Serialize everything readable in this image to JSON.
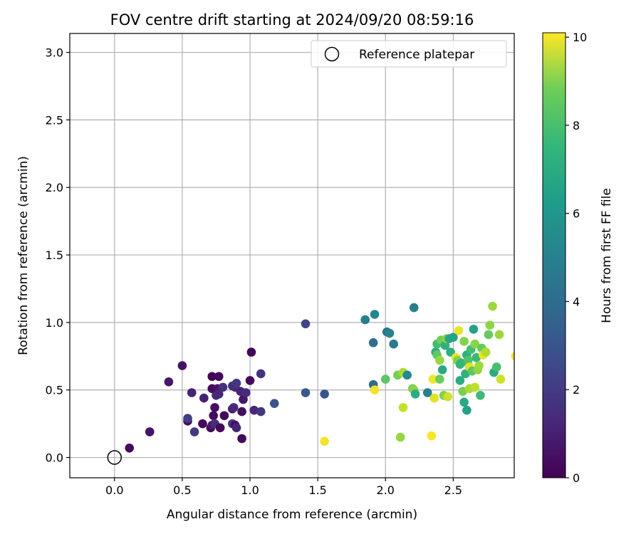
{
  "chart_data": {
    "type": "scatter",
    "title": "FOV centre drift starting at 2024/09/20 08:59:16",
    "xlabel": "Angular distance from reference (arcmin)",
    "ylabel": "Rotation from reference (arcmin)",
    "xlim": [
      -0.33,
      2.95
    ],
    "ylim": [
      -0.15,
      3.14
    ],
    "xticks": [
      "0.0",
      "0.5",
      "1.0",
      "1.5",
      "2.0",
      "2.5"
    ],
    "yticks": [
      "0.0",
      "0.5",
      "1.0",
      "1.5",
      "2.0",
      "2.5",
      "3.0"
    ],
    "grid": true,
    "legend": {
      "position": "top-right",
      "entries": [
        "Reference platepar"
      ]
    },
    "reference_point": {
      "x": 0.0,
      "y": 0.0,
      "marker": "open-circle"
    },
    "colorbar": {
      "label": "Hours from first FF file",
      "colormap": "viridis",
      "range": [
        0,
        10.1
      ],
      "ticks": [
        "0",
        "2",
        "4",
        "6",
        "8",
        "10"
      ]
    },
    "points": [
      {
        "x": 0.11,
        "y": 0.07,
        "t": 0.3
      },
      {
        "x": 0.26,
        "y": 0.19,
        "t": 0.5
      },
      {
        "x": 0.4,
        "y": 0.56,
        "t": 0.6
      },
      {
        "x": 0.5,
        "y": 0.68,
        "t": 0.5
      },
      {
        "x": 0.54,
        "y": 0.27,
        "t": 0.4
      },
      {
        "x": 0.54,
        "y": 0.29,
        "t": 1.9
      },
      {
        "x": 0.57,
        "y": 0.48,
        "t": 1.0
      },
      {
        "x": 0.59,
        "y": 0.19,
        "t": 1.7
      },
      {
        "x": 0.65,
        "y": 0.25,
        "t": 0.3
      },
      {
        "x": 0.66,
        "y": 0.44,
        "t": 0.9
      },
      {
        "x": 0.71,
        "y": 0.22,
        "t": 0.2
      },
      {
        "x": 0.72,
        "y": 0.24,
        "t": 0.7
      },
      {
        "x": 0.72,
        "y": 0.51,
        "t": 0.2
      },
      {
        "x": 0.72,
        "y": 0.6,
        "t": 0.1
      },
      {
        "x": 0.73,
        "y": 0.31,
        "t": 0.3
      },
      {
        "x": 0.74,
        "y": 0.25,
        "t": 1.3
      },
      {
        "x": 0.74,
        "y": 0.37,
        "t": 0.4
      },
      {
        "x": 0.75,
        "y": 0.46,
        "t": 1.2
      },
      {
        "x": 0.76,
        "y": 0.51,
        "t": 0.5
      },
      {
        "x": 0.77,
        "y": 0.47,
        "t": 1.1
      },
      {
        "x": 0.77,
        "y": 0.6,
        "t": 0.2
      },
      {
        "x": 0.78,
        "y": 0.22,
        "t": 0.1
      },
      {
        "x": 0.8,
        "y": 0.52,
        "t": 1.4
      },
      {
        "x": 0.81,
        "y": 0.31,
        "t": 0.3
      },
      {
        "x": 0.87,
        "y": 0.25,
        "t": 1.8
      },
      {
        "x": 0.87,
        "y": 0.36,
        "t": 0.7
      },
      {
        "x": 0.87,
        "y": 0.53,
        "t": 1.5
      },
      {
        "x": 0.88,
        "y": 0.37,
        "t": 1.2
      },
      {
        "x": 0.89,
        "y": 0.24,
        "t": 0.4
      },
      {
        "x": 0.89,
        "y": 0.52,
        "t": 1.2
      },
      {
        "x": 0.9,
        "y": 0.22,
        "t": 1.0
      },
      {
        "x": 0.9,
        "y": 0.55,
        "t": 1.6
      },
      {
        "x": 0.93,
        "y": 0.49,
        "t": 1.0
      },
      {
        "x": 0.94,
        "y": 0.14,
        "t": 0.2
      },
      {
        "x": 0.94,
        "y": 0.34,
        "t": 0.4
      },
      {
        "x": 0.95,
        "y": 0.43,
        "t": 0.6
      },
      {
        "x": 0.97,
        "y": 0.48,
        "t": 1.3
      },
      {
        "x": 1.0,
        "y": 0.57,
        "t": 0.2
      },
      {
        "x": 1.01,
        "y": 0.78,
        "t": 0.1
      },
      {
        "x": 1.03,
        "y": 0.35,
        "t": 1.1
      },
      {
        "x": 1.08,
        "y": 0.34,
        "t": 1.6
      },
      {
        "x": 1.08,
        "y": 0.62,
        "t": 1.5
      },
      {
        "x": 1.18,
        "y": 0.4,
        "t": 2.6
      },
      {
        "x": 1.41,
        "y": 0.99,
        "t": 2.1
      },
      {
        "x": 1.41,
        "y": 0.48,
        "t": 2.8
      },
      {
        "x": 1.55,
        "y": 0.47,
        "t": 2.7
      },
      {
        "x": 1.55,
        "y": 0.12,
        "t": 9.9
      },
      {
        "x": 1.85,
        "y": 1.02,
        "t": 4.3
      },
      {
        "x": 1.91,
        "y": 0.85,
        "t": 3.6
      },
      {
        "x": 1.91,
        "y": 0.54,
        "t": 3.5
      },
      {
        "x": 1.92,
        "y": 1.06,
        "t": 4.6
      },
      {
        "x": 1.92,
        "y": 0.5,
        "t": 9.9
      },
      {
        "x": 2.0,
        "y": 0.58,
        "t": 7.5
      },
      {
        "x": 2.01,
        "y": 0.93,
        "t": 4.0
      },
      {
        "x": 2.03,
        "y": 0.92,
        "t": 4.5
      },
      {
        "x": 2.06,
        "y": 0.84,
        "t": 4.2
      },
      {
        "x": 2.09,
        "y": 0.61,
        "t": 8.0
      },
      {
        "x": 2.11,
        "y": 0.15,
        "t": 8.5
      },
      {
        "x": 2.13,
        "y": 0.37,
        "t": 9.2
      },
      {
        "x": 2.13,
        "y": 0.63,
        "t": 8.8
      },
      {
        "x": 2.16,
        "y": 0.61,
        "t": 4.8
      },
      {
        "x": 2.2,
        "y": 0.51,
        "t": 8.0
      },
      {
        "x": 2.21,
        "y": 1.11,
        "t": 4.3
      },
      {
        "x": 2.21,
        "y": 0.5,
        "t": 8.3
      },
      {
        "x": 2.22,
        "y": 0.47,
        "t": 6.2
      },
      {
        "x": 2.31,
        "y": 0.48,
        "t": 4.4
      },
      {
        "x": 2.34,
        "y": 0.16,
        "t": 10.0
      },
      {
        "x": 2.35,
        "y": 0.58,
        "t": 9.9
      },
      {
        "x": 2.36,
        "y": 0.44,
        "t": 9.6
      },
      {
        "x": 2.37,
        "y": 0.78,
        "t": 6.2
      },
      {
        "x": 2.38,
        "y": 0.76,
        "t": 7.6
      },
      {
        "x": 2.38,
        "y": 0.84,
        "t": 7.0
      },
      {
        "x": 2.4,
        "y": 0.58,
        "t": 7.8
      },
      {
        "x": 2.4,
        "y": 0.72,
        "t": 8.5
      },
      {
        "x": 2.41,
        "y": 0.87,
        "t": 7.9
      },
      {
        "x": 2.42,
        "y": 0.65,
        "t": 6.1
      },
      {
        "x": 2.43,
        "y": 0.46,
        "t": 8.1
      },
      {
        "x": 2.44,
        "y": 0.83,
        "t": 6.4
      },
      {
        "x": 2.45,
        "y": 0.88,
        "t": 8.3
      },
      {
        "x": 2.46,
        "y": 0.45,
        "t": 9.4
      },
      {
        "x": 2.47,
        "y": 0.88,
        "t": 6.0
      },
      {
        "x": 2.48,
        "y": 0.78,
        "t": 6.4
      },
      {
        "x": 2.5,
        "y": 0.89,
        "t": 5.9
      },
      {
        "x": 2.52,
        "y": 0.74,
        "t": 9.9
      },
      {
        "x": 2.53,
        "y": 0.72,
        "t": 8.2
      },
      {
        "x": 2.54,
        "y": 0.94,
        "t": 9.8
      },
      {
        "x": 2.55,
        "y": 0.57,
        "t": 6.2
      },
      {
        "x": 2.55,
        "y": 0.69,
        "t": 6.6
      },
      {
        "x": 2.56,
        "y": 0.7,
        "t": 6.7
      },
      {
        "x": 2.57,
        "y": 0.49,
        "t": 8.0
      },
      {
        "x": 2.58,
        "y": 0.86,
        "t": 8.2
      },
      {
        "x": 2.58,
        "y": 0.41,
        "t": 6.1
      },
      {
        "x": 2.59,
        "y": 0.62,
        "t": 6.5
      },
      {
        "x": 2.6,
        "y": 0.76,
        "t": 6.4
      },
      {
        "x": 2.6,
        "y": 0.35,
        "t": 5.8
      },
      {
        "x": 2.61,
        "y": 0.72,
        "t": 7.3
      },
      {
        "x": 2.62,
        "y": 0.51,
        "t": 8.8
      },
      {
        "x": 2.62,
        "y": 0.67,
        "t": 9.6
      },
      {
        "x": 2.63,
        "y": 0.8,
        "t": 7.0
      },
      {
        "x": 2.64,
        "y": 0.64,
        "t": 7.5
      },
      {
        "x": 2.65,
        "y": 0.95,
        "t": 5.8
      },
      {
        "x": 2.66,
        "y": 0.52,
        "t": 9.1
      },
      {
        "x": 2.66,
        "y": 0.84,
        "t": 8.3
      },
      {
        "x": 2.67,
        "y": 0.74,
        "t": 6.8
      },
      {
        "x": 2.68,
        "y": 0.65,
        "t": 8.4
      },
      {
        "x": 2.69,
        "y": 0.68,
        "t": 8.6
      },
      {
        "x": 2.7,
        "y": 0.46,
        "t": 6.9
      },
      {
        "x": 2.71,
        "y": 0.81,
        "t": 7.7
      },
      {
        "x": 2.72,
        "y": 0.76,
        "t": 9.8
      },
      {
        "x": 2.74,
        "y": 0.78,
        "t": 8.9
      },
      {
        "x": 2.76,
        "y": 0.91,
        "t": 7.7
      },
      {
        "x": 2.77,
        "y": 0.98,
        "t": 8.4
      },
      {
        "x": 2.79,
        "y": 1.12,
        "t": 8.6
      },
      {
        "x": 2.8,
        "y": 0.63,
        "t": 6.2
      },
      {
        "x": 2.82,
        "y": 0.67,
        "t": 7.1
      },
      {
        "x": 2.84,
        "y": 0.91,
        "t": 8.6
      },
      {
        "x": 2.85,
        "y": 0.58,
        "t": 9.4
      },
      {
        "x": 2.96,
        "y": 0.75,
        "t": 9.9
      }
    ]
  }
}
